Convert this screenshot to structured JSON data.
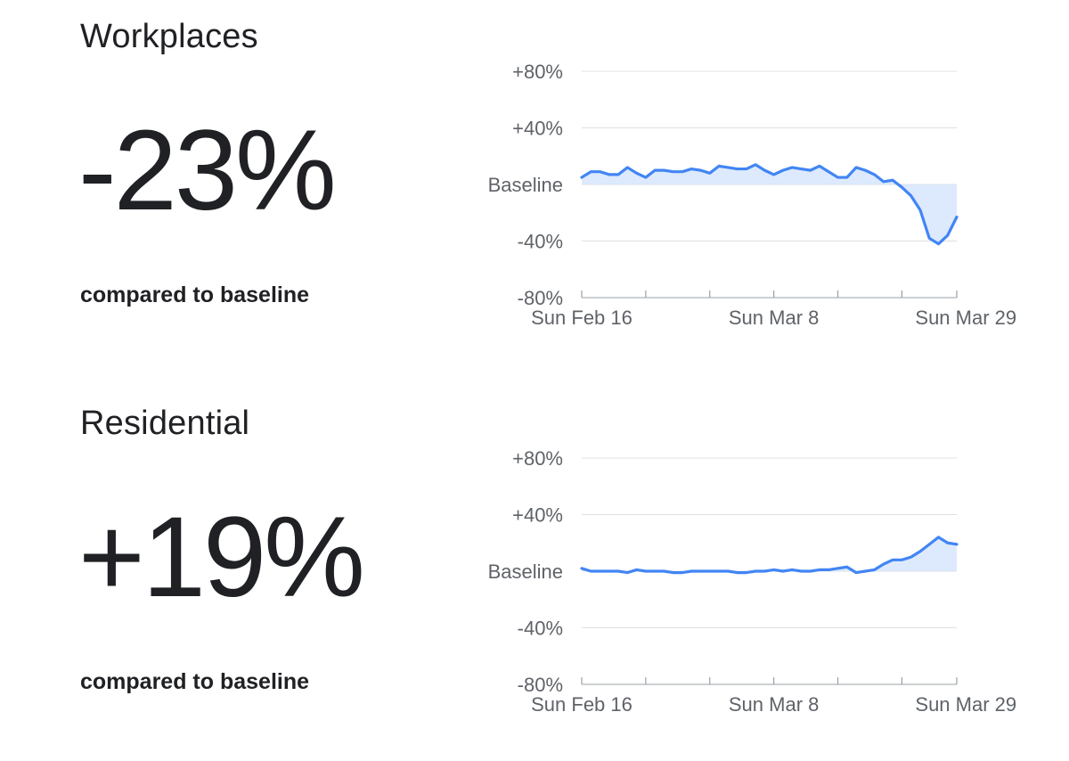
{
  "colors": {
    "line": "#4285f4",
    "fill": "#d2e3fc",
    "grid": "#e0e0e0",
    "axis": "#9aa0a6",
    "text": "#202124",
    "tick": "#5f6368"
  },
  "panels": [
    {
      "title": "Workplaces",
      "value": "-23%",
      "subtitle": "compared to baseline"
    },
    {
      "title": "Residential",
      "value": "+19%",
      "subtitle": "compared to baseline"
    }
  ],
  "chart_data": [
    {
      "type": "area",
      "title": "Workplaces",
      "y_ticks": [
        {
          "value": 80,
          "label": "+80%"
        },
        {
          "value": 40,
          "label": "+40%"
        },
        {
          "value": 0,
          "label": "Baseline"
        },
        {
          "value": -40,
          "label": "-40%"
        },
        {
          "value": -80,
          "label": "-80%"
        }
      ],
      "x_ticks": [
        {
          "index": 0,
          "label": "Sun Feb 16"
        },
        {
          "index": 21,
          "label": "Sun Mar 8"
        },
        {
          "index": 42,
          "label": "Sun Mar 29"
        }
      ],
      "x_minor_tick_every": 7,
      "ylim": [
        -80,
        80
      ],
      "grid": true,
      "values": [
        5,
        9,
        9,
        7,
        7,
        12,
        8,
        5,
        10,
        10,
        9,
        9,
        11,
        10,
        8,
        13,
        12,
        11,
        11,
        14,
        10,
        7,
        10,
        12,
        11,
        10,
        13,
        9,
        5,
        5,
        12,
        10,
        7,
        2,
        3,
        -2,
        -8,
        -18,
        -38,
        -42,
        -36,
        -23
      ]
    },
    {
      "type": "area",
      "title": "Residential",
      "y_ticks": [
        {
          "value": 80,
          "label": "+80%"
        },
        {
          "value": 40,
          "label": "+40%"
        },
        {
          "value": 0,
          "label": "Baseline"
        },
        {
          "value": -40,
          "label": "-40%"
        },
        {
          "value": -80,
          "label": "-80%"
        }
      ],
      "x_ticks": [
        {
          "index": 0,
          "label": "Sun Feb 16"
        },
        {
          "index": 21,
          "label": "Sun Mar 8"
        },
        {
          "index": 42,
          "label": "Sun Mar 29"
        }
      ],
      "x_minor_tick_every": 7,
      "ylim": [
        -80,
        80
      ],
      "grid": true,
      "values": [
        2,
        0,
        0,
        0,
        0,
        -1,
        1,
        0,
        0,
        0,
        -1,
        -1,
        0,
        0,
        0,
        0,
        0,
        -1,
        -1,
        0,
        0,
        1,
        0,
        1,
        0,
        0,
        1,
        1,
        2,
        3,
        -1,
        0,
        1,
        5,
        8,
        8,
        10,
        14,
        19,
        24,
        20,
        19
      ]
    }
  ]
}
